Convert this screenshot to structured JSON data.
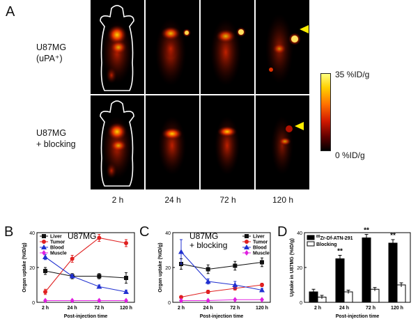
{
  "figure": {
    "panel_letters": {
      "a": "A",
      "b": "B",
      "c": "C",
      "d": "D"
    },
    "row_labels": {
      "row1_line1": "U87MG",
      "row1_line2": "(uPA⁺)",
      "row2_line1": "U87MG",
      "row2_line2": "+ blocking"
    },
    "time_labels": [
      "2 h",
      "24 h",
      "72 h",
      "120 h"
    ],
    "colorbar": {
      "max_label": "35 %ID/g",
      "min_label": "0 %ID/g"
    },
    "colors": {
      "tile_bg": "#000000",
      "arrow": "#ffee00",
      "hot": "#ffd200",
      "mid": "#e03000",
      "low": "#6a0000"
    }
  },
  "chart_data": [
    {
      "id": "B",
      "type": "line",
      "title": "U87MG",
      "xlabel": "Post-injection time",
      "ylabel": "Organ uptake (%ID/g)",
      "categories": [
        "2 h",
        "24 h",
        "72 h",
        "120 h"
      ],
      "ylim": [
        0,
        40
      ],
      "yticks": [
        "0",
        "20",
        "40"
      ],
      "legend_position": "top-left",
      "series": [
        {
          "name": "Liver",
          "color": "#111111",
          "marker": "square",
          "values": [
            18,
            15,
            15,
            14
          ],
          "errors": [
            2,
            1.5,
            1.5,
            3
          ]
        },
        {
          "name": "Tumor",
          "color": "#e02020",
          "marker": "circle",
          "values": [
            6,
            25,
            37,
            34
          ],
          "errors": [
            1.5,
            2,
            2,
            2
          ]
        },
        {
          "name": "Blood",
          "color": "#2030d0",
          "marker": "triangle",
          "values": [
            26,
            15,
            9,
            6
          ],
          "errors": [
            1.5,
            1,
            1,
            1
          ]
        },
        {
          "name": "Muscle",
          "color": "#e020e0",
          "marker": "diamond",
          "values": [
            1,
            1,
            1,
            1
          ],
          "errors": [
            0.3,
            0.3,
            0.3,
            0.3
          ]
        }
      ]
    },
    {
      "id": "C",
      "type": "line",
      "title": "U87MG\n+ blocking",
      "title_lines": [
        "U87MG",
        "+ blocking"
      ],
      "xlabel": "Post-injection time",
      "ylabel": "Organ uptake (%ID/g)",
      "categories": [
        "2 h",
        "24 h",
        "72 h",
        "120 h"
      ],
      "ylim": [
        0,
        40
      ],
      "yticks": [
        "0",
        "20",
        "40"
      ],
      "legend_position": "top-right",
      "series": [
        {
          "name": "Liver",
          "color": "#111111",
          "marker": "square",
          "values": [
            22,
            19,
            21,
            23
          ],
          "errors": [
            3,
            2.5,
            2.5,
            2.5
          ]
        },
        {
          "name": "Tumor",
          "color": "#e02020",
          "marker": "circle",
          "values": [
            3,
            6,
            8,
            10
          ],
          "errors": [
            0.8,
            1,
            1,
            1
          ]
        },
        {
          "name": "Blood",
          "color": "#2030d0",
          "marker": "triangle",
          "values": [
            29,
            12,
            10,
            7
          ],
          "errors": [
            7,
            1.5,
            2,
            1
          ]
        },
        {
          "name": "Muscle",
          "color": "#e020e0",
          "marker": "diamond",
          "values": [
            1,
            1,
            1.5,
            1.5
          ],
          "errors": [
            0.3,
            0.3,
            0.3,
            0.3
          ]
        }
      ]
    },
    {
      "id": "D",
      "type": "bar",
      "xlabel": "Post-injection time",
      "ylabel": "Uptake in U87MG (%ID/g)",
      "categories": [
        "2 h",
        "24 h",
        "72 h",
        "120 h"
      ],
      "ylim": [
        0,
        40
      ],
      "yticks": [
        "0",
        "20",
        "40"
      ],
      "legend_position": "top-left",
      "significance": [
        "",
        "**",
        "**",
        "**"
      ],
      "series": [
        {
          "name_prefix": "89",
          "name": "Zr-Df-ATN-291",
          "fill": "#000000",
          "values": [
            6,
            25,
            37,
            34
          ],
          "errors": [
            1.5,
            2,
            2,
            2
          ]
        },
        {
          "name": "Blocking",
          "fill": "#ffffff",
          "values": [
            3,
            6,
            7.5,
            10
          ],
          "errors": [
            1,
            1,
            1,
            1.2
          ]
        }
      ]
    }
  ]
}
